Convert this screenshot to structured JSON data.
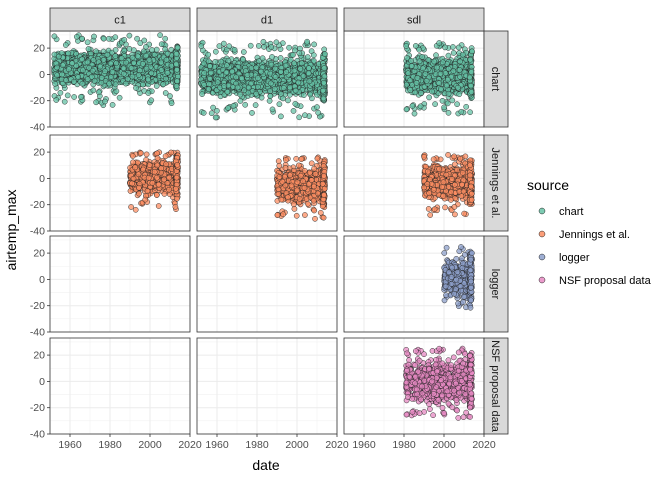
{
  "chart_data": {
    "type": "scatter",
    "facet_columns": [
      "c1",
      "d1",
      "sdl"
    ],
    "facet_rows": [
      "chart",
      "Jennings et al.",
      "logger",
      "NSF proposal data"
    ],
    "xlabel": "date",
    "ylabel": "airtemp_max",
    "xlim": [
      1950,
      2020
    ],
    "ylim": [
      -40,
      33
    ],
    "x_ticks": [
      1960,
      1980,
      2000,
      2020
    ],
    "y_ticks": [
      -40,
      -20,
      0,
      20
    ],
    "legend": {
      "title": "source",
      "placement": "right",
      "entries": [
        {
          "label": "chart",
          "color": "#66c2a5"
        },
        {
          "label": "Jennings et al.",
          "color": "#fc8d62"
        },
        {
          "label": "logger",
          "color": "#8da0cb"
        },
        {
          "label": "NSF proposal data",
          "color": "#e78ac3"
        }
      ]
    },
    "series": [
      {
        "source": "chart",
        "site": "c1",
        "x_range": [
          1952,
          2014
        ],
        "y_band": [
          -12,
          22
        ],
        "y_extremes": [
          -24,
          30
        ],
        "color": "#66c2a5"
      },
      {
        "source": "chart",
        "site": "d1",
        "x_range": [
          1952,
          2014
        ],
        "y_band": [
          -20,
          16
        ],
        "y_extremes": [
          -33,
          25
        ],
        "color": "#66c2a5"
      },
      {
        "source": "chart",
        "site": "sdl",
        "x_range": [
          1981,
          2014
        ],
        "y_band": [
          -20,
          18
        ],
        "y_extremes": [
          -30,
          24
        ],
        "color": "#66c2a5"
      },
      {
        "source": "Jennings et al.",
        "site": "c1",
        "x_range": [
          1990,
          2014
        ],
        "y_band": [
          -16,
          18
        ],
        "y_extremes": [
          -24,
          20
        ],
        "color": "#fc8d62"
      },
      {
        "source": "Jennings et al.",
        "site": "d1",
        "x_range": [
          1990,
          2014
        ],
        "y_band": [
          -22,
          13
        ],
        "y_extremes": [
          -31,
          16
        ],
        "color": "#fc8d62"
      },
      {
        "source": "Jennings et al.",
        "site": "sdl",
        "x_range": [
          1990,
          2014
        ],
        "y_band": [
          -20,
          14
        ],
        "y_extremes": [
          -28,
          18
        ],
        "color": "#fc8d62"
      },
      {
        "source": "logger",
        "site": "sdl",
        "x_range": [
          2000,
          2014
        ],
        "y_band": [
          -18,
          20
        ],
        "y_extremes": [
          -23,
          25
        ],
        "color": "#8da0cb"
      },
      {
        "source": "NSF proposal data",
        "site": "sdl",
        "x_range": [
          1981,
          2014
        ],
        "y_band": [
          -20,
          20
        ],
        "y_extremes": [
          -28,
          25
        ],
        "color": "#e78ac3"
      }
    ]
  }
}
